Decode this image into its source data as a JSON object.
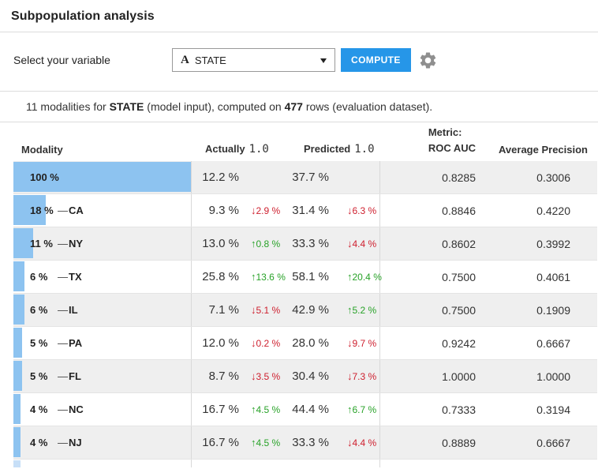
{
  "header": {
    "title": "Subpopulation analysis"
  },
  "controls": {
    "label": "Select your variable",
    "variable_type_icon": "A",
    "selected_variable": "STATE",
    "compute_label": "COMPUTE"
  },
  "summary": {
    "count_prefix": "11 modalities for ",
    "variable": "STATE",
    "middle": " (model input), computed on ",
    "row_count": "477",
    "suffix": " rows (evaluation dataset)."
  },
  "colors": {
    "accent": "#2696e8",
    "bar_blue": "#8dc3f0",
    "bar_blue_light": "#c7dff7",
    "delta_up": "#28a228",
    "delta_down": "#ce1f2e",
    "row_alt": "#efefef"
  },
  "table": {
    "dash_glyph": "—",
    "columns": {
      "modality": "Modality",
      "actually": "Actually",
      "actually_class": "1.0",
      "predicted": "Predicted",
      "predicted_class": "1.0",
      "metric_line1": "Metric:",
      "metric_line2": "ROC AUC",
      "avg_precision": "Average Precision"
    },
    "rows": [
      {
        "pct": "100 %",
        "code": "",
        "bar_pct": 100,
        "actual": "12.2 %",
        "actual_delta": null,
        "predicted": "37.7 %",
        "predicted_delta": null,
        "roc_auc": "0.8285",
        "avg_precision": "0.3006"
      },
      {
        "pct": "18 %",
        "code": "CA",
        "bar_pct": 18,
        "actual": "9.3 %",
        "actual_delta": {
          "dir": "down",
          "text": "2.9 %"
        },
        "predicted": "31.4 %",
        "predicted_delta": {
          "dir": "down",
          "text": "6.3 %"
        },
        "roc_auc": "0.8846",
        "avg_precision": "0.4220"
      },
      {
        "pct": "11 %",
        "code": "NY",
        "bar_pct": 11,
        "actual": "13.0 %",
        "actual_delta": {
          "dir": "up",
          "text": "0.8 %"
        },
        "predicted": "33.3 %",
        "predicted_delta": {
          "dir": "down",
          "text": "4.4 %"
        },
        "roc_auc": "0.8602",
        "avg_precision": "0.3992"
      },
      {
        "pct": "6 %",
        "code": "TX",
        "bar_pct": 6,
        "actual": "25.8 %",
        "actual_delta": {
          "dir": "up",
          "text": "13.6 %"
        },
        "predicted": "58.1 %",
        "predicted_delta": {
          "dir": "up",
          "text": "20.4 %"
        },
        "roc_auc": "0.7500",
        "avg_precision": "0.4061"
      },
      {
        "pct": "6 %",
        "code": "IL",
        "bar_pct": 6,
        "actual": "7.1 %",
        "actual_delta": {
          "dir": "down",
          "text": "5.1 %"
        },
        "predicted": "42.9 %",
        "predicted_delta": {
          "dir": "up",
          "text": "5.2 %"
        },
        "roc_auc": "0.7500",
        "avg_precision": "0.1909"
      },
      {
        "pct": "5 %",
        "code": "PA",
        "bar_pct": 5,
        "actual": "12.0 %",
        "actual_delta": {
          "dir": "down",
          "text": "0.2 %"
        },
        "predicted": "28.0 %",
        "predicted_delta": {
          "dir": "down",
          "text": "9.7 %"
        },
        "roc_auc": "0.9242",
        "avg_precision": "0.6667"
      },
      {
        "pct": "5 %",
        "code": "FL",
        "bar_pct": 5,
        "actual": "8.7 %",
        "actual_delta": {
          "dir": "down",
          "text": "3.5 %"
        },
        "predicted": "30.4 %",
        "predicted_delta": {
          "dir": "down",
          "text": "7.3 %"
        },
        "roc_auc": "1.0000",
        "avg_precision": "1.0000"
      },
      {
        "pct": "4 %",
        "code": "NC",
        "bar_pct": 4,
        "actual": "16.7 %",
        "actual_delta": {
          "dir": "up",
          "text": "4.5 %"
        },
        "predicted": "44.4 %",
        "predicted_delta": {
          "dir": "up",
          "text": "6.7 %"
        },
        "roc_auc": "0.7333",
        "avg_precision": "0.3194"
      },
      {
        "pct": "4 %",
        "code": "NJ",
        "bar_pct": 4,
        "actual": "16.7 %",
        "actual_delta": {
          "dir": "up",
          "text": "4.5 %"
        },
        "predicted": "33.3 %",
        "predicted_delta": {
          "dir": "down",
          "text": "4.4 %"
        },
        "roc_auc": "0.8889",
        "avg_precision": "0.6667"
      }
    ],
    "partial_row": {
      "bar_pct": 4
    }
  }
}
